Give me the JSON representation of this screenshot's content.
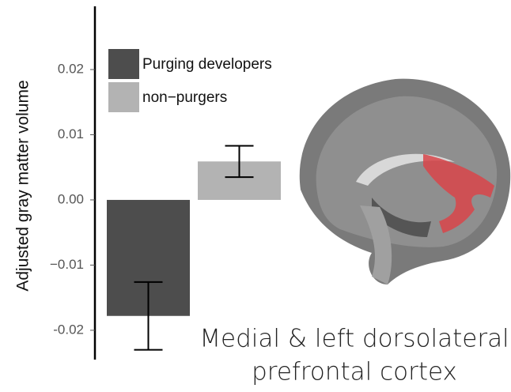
{
  "chart_data": {
    "type": "bar",
    "y_label": "Adjusted gray matter volume",
    "ylim": [
      -0.0245,
      0.0297
    ],
    "yticks": [
      -0.02,
      {
        "value": -0.01,
        "label": "−0.01"
      },
      {
        "value": 0,
        "label": "0.00"
      },
      0.01,
      0.02
    ],
    "series": [
      {
        "name": "Purging developers",
        "color": "#4d4d4d",
        "values": [
          -0.0178
        ],
        "errors": [
          0.0052
        ]
      },
      {
        "name": "non−purgers",
        "color": "#b3b3b3",
        "values": [
          0.0059
        ],
        "errors": [
          0.0024
        ]
      }
    ],
    "annotations": [
      "Medial & left dorsolateral",
      "prefrontal cortex"
    ]
  }
}
